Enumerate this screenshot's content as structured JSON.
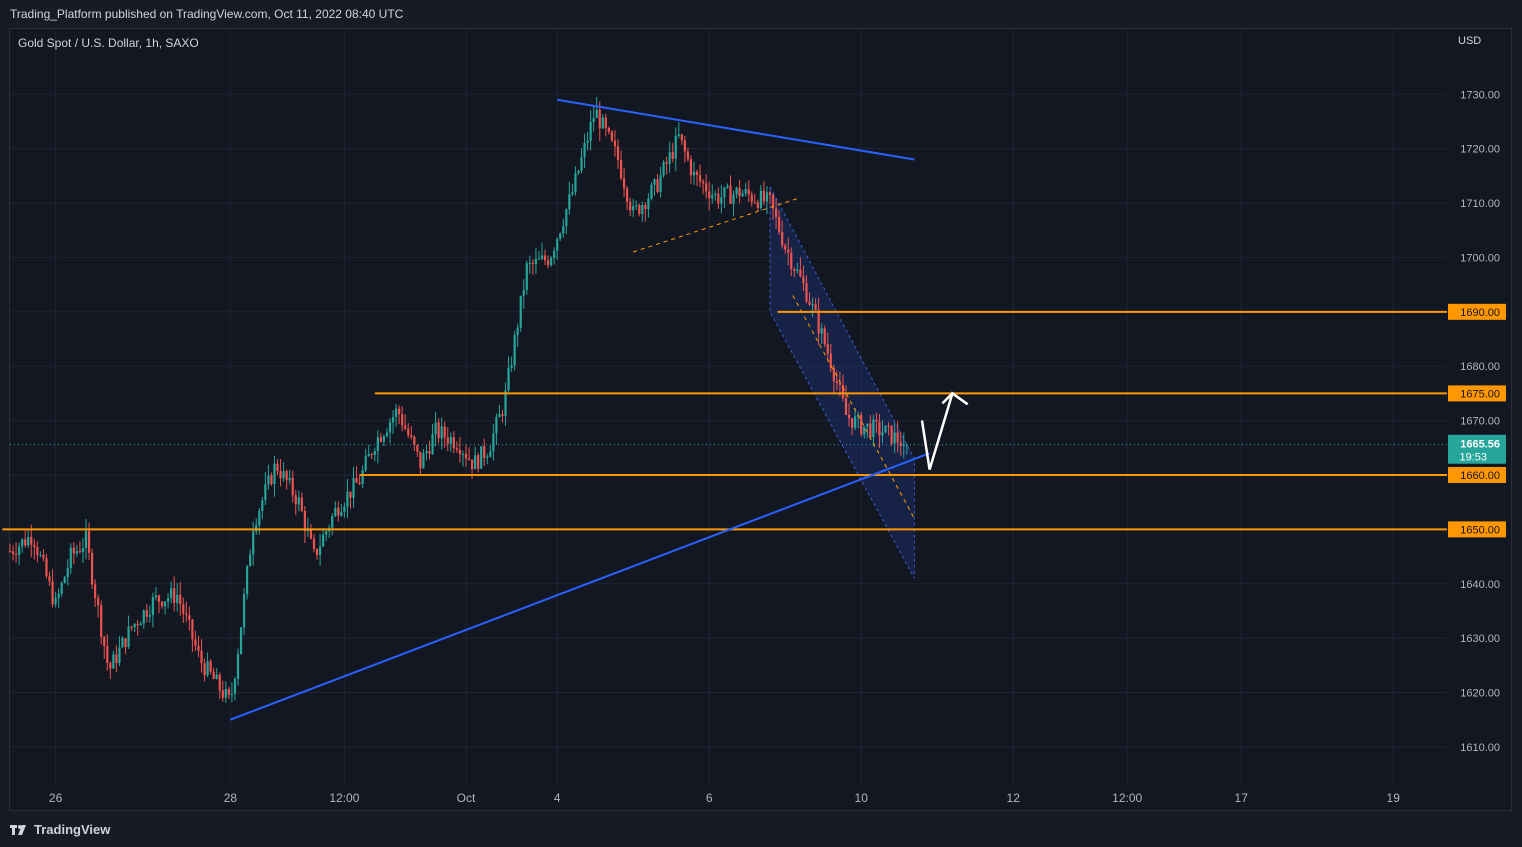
{
  "publish_info": "Trading_Platform published on TradingView.com, Oct 11, 2022 08:40 UTC",
  "symbol_title": "Gold Spot / U.S. Dollar, 1h, SAXO",
  "currency": "USD",
  "footer_brand": "TradingView",
  "colors": {
    "background": "#131722",
    "grid": "#1f2433",
    "up": "#26a69a",
    "down": "#ef5350",
    "trendline": "#2962ff",
    "level": "#ff9800",
    "current_price": "#26a69a",
    "channel_fill": "#1e3a8a"
  },
  "chart_data": {
    "type": "candlestick",
    "instrument": "Gold Spot / U.S. Dollar",
    "timeframe": "1h",
    "y_range": [
      1603,
      1742
    ],
    "y_ticks": [
      1730,
      1720,
      1710,
      1700,
      1690,
      1680,
      1670,
      1660,
      1650,
      1640,
      1630,
      1620,
      1610
    ],
    "y_tick_labels": [
      "1730.00",
      "1720.00",
      "1710.00",
      "1700.00",
      "1690.00",
      "1680.00",
      "1670.00",
      "1660.00",
      "1650.00",
      "1640.00",
      "1630.00",
      "1620.00",
      "1610.00"
    ],
    "x_ticks": [
      {
        "label": "26",
        "t": 0.06
      },
      {
        "label": "28",
        "t": 0.29
      },
      {
        "label": "12:00",
        "t": 0.44
      },
      {
        "label": "Oct",
        "t": 0.6
      },
      {
        "label": "4",
        "t": 0.72
      },
      {
        "label": "6",
        "t": 0.92
      },
      {
        "label": "10",
        "t": 1.12
      },
      {
        "label": "12",
        "t": 1.32
      },
      {
        "label": "12:00",
        "t": 1.47
      },
      {
        "label": "17",
        "t": 1.62
      },
      {
        "label": "19",
        "t": 1.82
      }
    ],
    "price_path": [
      [
        0.0,
        1646
      ],
      [
        0.03,
        1649
      ],
      [
        0.06,
        1636
      ],
      [
        0.08,
        1645
      ],
      [
        0.1,
        1648
      ],
      [
        0.13,
        1624
      ],
      [
        0.16,
        1632
      ],
      [
        0.19,
        1637
      ],
      [
        0.22,
        1638
      ],
      [
        0.25,
        1626
      ],
      [
        0.29,
        1618
      ],
      [
        0.3,
        1628
      ],
      [
        0.32,
        1651
      ],
      [
        0.35,
        1662
      ],
      [
        0.38,
        1655
      ],
      [
        0.4,
        1645
      ],
      [
        0.43,
        1654
      ],
      [
        0.46,
        1659
      ],
      [
        0.48,
        1666
      ],
      [
        0.51,
        1672
      ],
      [
        0.54,
        1662
      ],
      [
        0.56,
        1668
      ],
      [
        0.59,
        1666
      ],
      [
        0.61,
        1662
      ],
      [
        0.63,
        1665
      ],
      [
        0.65,
        1673
      ],
      [
        0.68,
        1698
      ],
      [
        0.71,
        1700
      ],
      [
        0.74,
        1712
      ],
      [
        0.77,
        1727
      ],
      [
        0.8,
        1718
      ],
      [
        0.82,
        1708
      ],
      [
        0.85,
        1713
      ],
      [
        0.88,
        1722
      ],
      [
        0.9,
        1715
      ],
      [
        0.93,
        1711
      ],
      [
        0.96,
        1712
      ],
      [
        1.0,
        1710
      ],
      [
        1.02,
        1702
      ],
      [
        1.05,
        1693
      ],
      [
        1.08,
        1681
      ],
      [
        1.1,
        1671
      ],
      [
        1.12,
        1669
      ],
      [
        1.15,
        1668
      ],
      [
        1.18,
        1665.56
      ]
    ],
    "horizontal_levels": [
      {
        "price": 1690,
        "label": "1690.00",
        "t_start": 1.01
      },
      {
        "price": 1675,
        "label": "1675.00",
        "t_start": 0.48
      },
      {
        "price": 1660,
        "label": "1660.00",
        "t_start": 0.46
      },
      {
        "price": 1650,
        "label": "1650.00",
        "t_start": -0.01
      }
    ],
    "current_price": {
      "value": 1665.56,
      "label": "1665.56",
      "countdown": "19:53"
    },
    "trendlines": [
      {
        "name": "upper-resistance-trendline",
        "from": {
          "t": 0.72,
          "price": 1729
        },
        "to": {
          "t": 1.19,
          "price": 1718
        }
      },
      {
        "name": "lower-support-trendline",
        "from": {
          "t": 0.29,
          "price": 1615
        },
        "to": {
          "t": 1.21,
          "price": 1664
        }
      }
    ],
    "descending_channel": {
      "upper_from": {
        "t": 1.0,
        "price": 1713
      },
      "upper_to": {
        "t": 1.19,
        "price": 1663
      },
      "lower_from": {
        "t": 1.0,
        "price": 1690
      },
      "lower_to": {
        "t": 1.19,
        "price": 1641
      }
    },
    "dashed_lines": [
      {
        "name": "rising-wedge-dashed-line",
        "from": {
          "t": 0.82,
          "price": 1701
        },
        "to": {
          "t": 1.04,
          "price": 1711
        }
      },
      {
        "name": "channel-midline-dashed",
        "from": {
          "t": 1.03,
          "price": 1693
        },
        "to": {
          "t": 1.19,
          "price": 1652
        }
      }
    ],
    "projection_arrow": [
      {
        "t": 1.2,
        "price": 1670
      },
      {
        "t": 1.21,
        "price": 1661
      },
      {
        "t": 1.24,
        "price": 1675
      },
      {
        "t": 1.26,
        "price": 1673
      }
    ]
  }
}
